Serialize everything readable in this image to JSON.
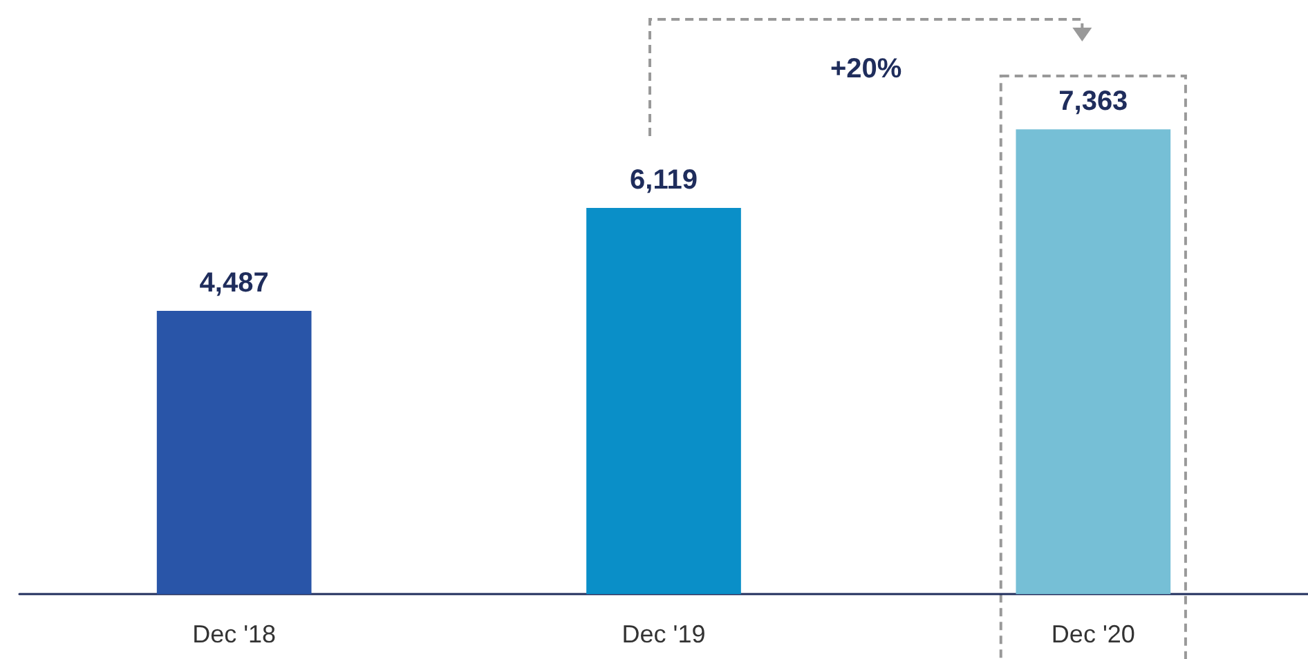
{
  "chart_data": {
    "type": "bar",
    "categories": [
      "Dec '18",
      "Dec '19",
      "Dec '20"
    ],
    "values": [
      4487,
      6119,
      7363
    ],
    "colors": [
      "#2955a8",
      "#0a8fc8",
      "#76bfd6"
    ],
    "value_labels": [
      "4,487",
      "6,119",
      "7,363"
    ],
    "annotations": [
      "+20%"
    ]
  }
}
